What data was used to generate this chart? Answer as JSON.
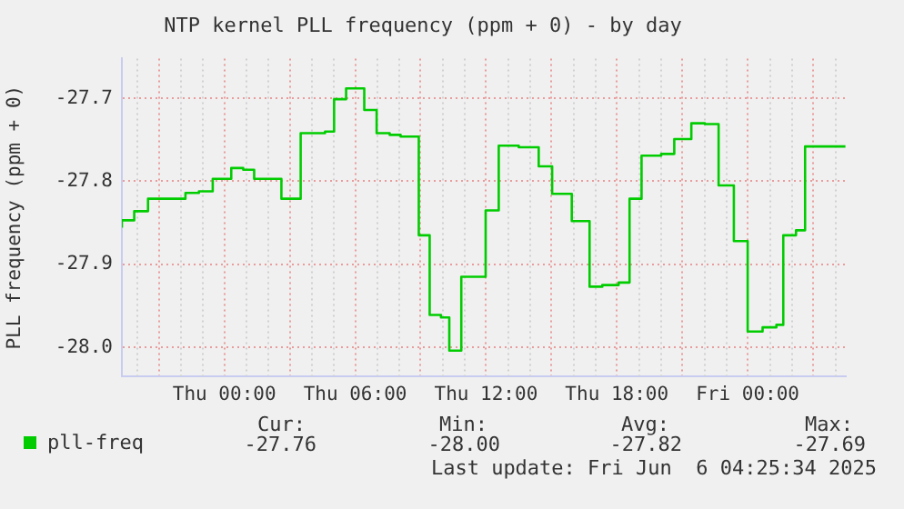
{
  "chart_data": {
    "type": "step",
    "title": "NTP kernel PLL frequency (ppm + 0) - by day",
    "ylabel": "PLL frequency (ppm + 0)",
    "x": [
      "2025-06-04T19:18",
      "2025-06-04T19:52",
      "2025-06-04T20:30",
      "2025-06-04T22:13",
      "2025-06-04T22:50",
      "2025-06-04T23:28",
      "2025-06-05T00:19",
      "2025-06-05T00:52",
      "2025-06-05T01:22",
      "2025-06-05T02:37",
      "2025-06-05T03:30",
      "2025-06-05T04:37",
      "2025-06-05T05:02",
      "2025-06-05T05:35",
      "2025-06-05T06:25",
      "2025-06-05T06:59",
      "2025-06-05T07:35",
      "2025-06-05T08:05",
      "2025-06-05T08:55",
      "2025-06-05T09:25",
      "2025-06-05T09:56",
      "2025-06-05T10:19",
      "2025-06-05T10:52",
      "2025-06-05T11:59",
      "2025-06-05T12:35",
      "2025-06-05T13:30",
      "2025-06-05T14:25",
      "2025-06-05T15:02",
      "2025-06-05T15:56",
      "2025-06-05T16:45",
      "2025-06-05T17:20",
      "2025-06-05T18:05",
      "2025-06-05T18:35",
      "2025-06-05T19:08",
      "2025-06-05T20:02",
      "2025-06-05T20:38",
      "2025-06-05T21:25",
      "2025-06-05T22:02",
      "2025-06-05T22:40",
      "2025-06-05T23:22",
      "2025-06-06T00:00",
      "2025-06-06T00:41",
      "2025-06-06T01:19",
      "2025-06-06T01:38",
      "2025-06-06T02:13",
      "2025-06-06T02:38",
      "2025-06-06T03:19",
      "2025-06-06T04:29"
    ],
    "series": [
      {
        "name": "pll-freq",
        "color": "#00cc00",
        "values": [
          -27.856,
          -27.847,
          -27.836,
          -27.821,
          -27.814,
          -27.812,
          -27.797,
          -27.784,
          -27.786,
          -27.797,
          -27.821,
          -27.742,
          -27.74,
          -27.701,
          -27.688,
          -27.714,
          -27.742,
          -27.744,
          -27.746,
          -27.865,
          -27.961,
          -27.964,
          -28.004,
          -27.915,
          -27.835,
          -27.757,
          -27.759,
          -27.782,
          -27.815,
          -27.848,
          -27.927,
          -27.925,
          -27.922,
          -27.821,
          -27.769,
          -27.767,
          -27.749,
          -27.73,
          -27.731,
          -27.805,
          -27.872,
          -27.981,
          -27.976,
          -27.973,
          -27.865,
          -27.859,
          -27.758,
          -27.758
        ]
      }
    ],
    "xlim": [
      "2025-06-04T19:18",
      "2025-06-06T04:30"
    ],
    "xticks": [
      {
        "value": "2025-06-04T21:00",
        "label": null
      },
      {
        "value": "2025-06-05T00:00",
        "label": "Thu 00:00"
      },
      {
        "value": "2025-06-05T03:00",
        "label": null
      },
      {
        "value": "2025-06-05T06:00",
        "label": "Thu 06:00"
      },
      {
        "value": "2025-06-05T09:00",
        "label": null
      },
      {
        "value": "2025-06-05T12:00",
        "label": "Thu 12:00"
      },
      {
        "value": "2025-06-05T15:00",
        "label": null
      },
      {
        "value": "2025-06-05T18:00",
        "label": "Thu 18:00"
      },
      {
        "value": "2025-06-05T21:00",
        "label": null
      },
      {
        "value": "2025-06-06T00:00",
        "label": "Fri 00:00"
      },
      {
        "value": "2025-06-06T03:00",
        "label": null
      }
    ],
    "ylim": [
      -28.035,
      -27.652
    ],
    "yticks": [
      {
        "value": -28.0,
        "label": "-28.0"
      },
      {
        "value": -27.9,
        "label": "-27.9"
      },
      {
        "value": -27.8,
        "label": "-27.8"
      },
      {
        "value": -27.7,
        "label": "-27.7"
      }
    ],
    "grid": true,
    "legend": "bottom left",
    "annotations": [
      "Cur:",
      "Min:",
      "Avg:",
      "Max:",
      "-27.76",
      "-28.00",
      "-27.82",
      "-27.69",
      "Last update: Fri Jun  6 04:25:34 2025"
    ]
  }
}
